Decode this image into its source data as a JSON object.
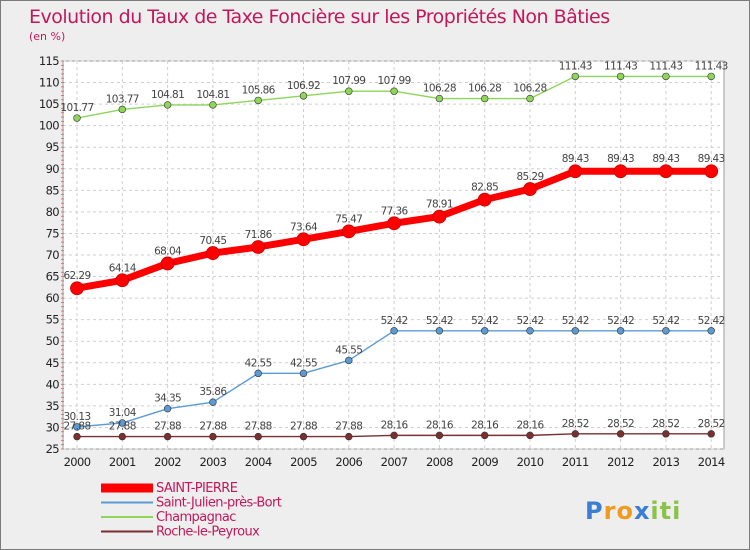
{
  "chart_data": {
    "type": "line",
    "title": "Evolution du Taux de Taxe Foncière sur les Propriétés Non Bâties",
    "subtitle": "(en %)",
    "x": [
      "2000",
      "2001",
      "2002",
      "2003",
      "2004",
      "2005",
      "2006",
      "2007",
      "2008",
      "2009",
      "2010",
      "2011",
      "2012",
      "2013",
      "2014"
    ],
    "ylim": [
      25,
      115
    ],
    "yticks": [
      25,
      30,
      35,
      40,
      45,
      50,
      55,
      60,
      65,
      70,
      75,
      80,
      85,
      90,
      95,
      100,
      105,
      110,
      115
    ],
    "grid": true,
    "legend_position": "bottom-left",
    "series": [
      {
        "name": "SAINT-PIERRE",
        "color": "#ff0000",
        "values": [
          62.29,
          64.14,
          68.04,
          70.45,
          71.86,
          73.64,
          75.47,
          77.36,
          78.91,
          82.85,
          85.29,
          89.43,
          89.43,
          89.43,
          89.43
        ],
        "labels": [
          "62.29",
          "64.14",
          "68.04",
          "70.45",
          "71.86",
          "73.64",
          "75.47",
          "77.36",
          "78.91",
          "82.85",
          "85.29",
          "89.43",
          "89.43",
          "89.43",
          "89.43"
        ]
      },
      {
        "name": "Saint-Julien-près-Bort",
        "color": "#5b9bd5",
        "values": [
          30.13,
          31.04,
          34.35,
          35.86,
          42.55,
          42.55,
          45.55,
          52.42,
          52.42,
          52.42,
          52.42,
          52.42,
          52.42,
          52.42,
          52.42
        ],
        "labels": [
          "30.13",
          "31.04",
          "34.35",
          "35.86",
          "42.55",
          "42.55",
          "45.55",
          "52.42",
          "52.42",
          "52.42",
          "52.42",
          "52.42",
          "52.42",
          "52.42",
          "52.42"
        ]
      },
      {
        "name": "Champagnac",
        "color": "#8ed55a",
        "values": [
          101.77,
          103.77,
          104.81,
          104.81,
          105.86,
          106.92,
          107.99,
          107.99,
          106.28,
          106.28,
          106.28,
          111.43,
          111.43,
          111.43,
          111.43
        ],
        "labels": [
          "101.77",
          "103.77",
          "104.81",
          "104.81",
          "105.86",
          "106.92",
          "107.99",
          "107.99",
          "106.28",
          "106.28",
          "106.28",
          "111.43",
          "111.43",
          "111.43",
          "111.43"
        ]
      },
      {
        "name": "Roche-le-Peyroux",
        "color": "#7b2f2f",
        "values": [
          27.88,
          27.88,
          27.88,
          27.88,
          27.88,
          27.88,
          27.88,
          28.16,
          28.16,
          28.16,
          28.16,
          28.52,
          28.52,
          28.52,
          28.52
        ],
        "labels": [
          "27.88",
          "27.88",
          "27.88",
          "27.88",
          "27.88",
          "27.88",
          "27.88",
          "28.16",
          "28.16",
          "28.16",
          "28.16",
          "28.52",
          "28.52",
          "28.52",
          "28.52"
        ]
      }
    ]
  },
  "colors": {
    "title": "#c2185b",
    "legend_text": "#c2185b",
    "background": "#eeeeee",
    "grid": "#cfcfcf"
  },
  "logo": {
    "text": "Proxiti",
    "letter_colors": [
      "#3a7fd5",
      "#f29a1f",
      "#f29a1f",
      "#3a7fd5",
      "#8bc34a",
      "#8bc34a",
      "#8bc34a"
    ]
  }
}
